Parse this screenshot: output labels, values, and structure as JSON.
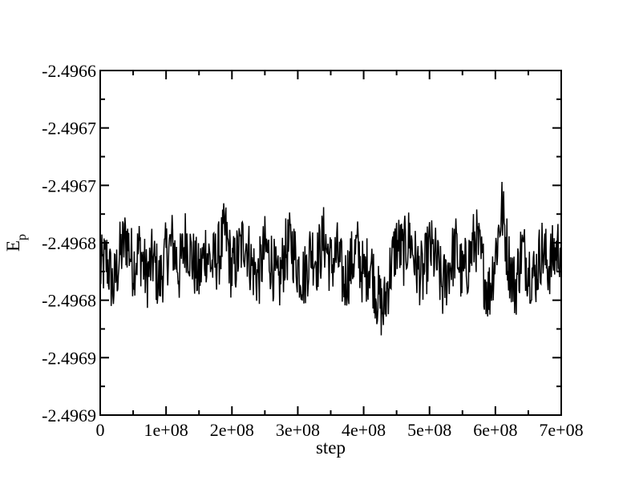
{
  "chart_data": {
    "type": "line",
    "title": "",
    "xlabel": "step",
    "ylabel": "E",
    "ylabel_subscript": "p",
    "xlim": [
      0,
      700000000
    ],
    "ylim": [
      -2.4969,
      -2.4966
    ],
    "grid": false,
    "legend": "none",
    "line_color": "#000000",
    "x_ticks": [
      {
        "value": 0,
        "label": "0"
      },
      {
        "value": 100000000,
        "label": "1e+08"
      },
      {
        "value": 200000000,
        "label": "2e+08"
      },
      {
        "value": 300000000,
        "label": "3e+08"
      },
      {
        "value": 400000000,
        "label": "4e+08"
      },
      {
        "value": 500000000,
        "label": "5e+08"
      },
      {
        "value": 600000000,
        "label": "6e+08"
      },
      {
        "value": 700000000,
        "label": "7e+08"
      }
    ],
    "y_ticks": [
      {
        "value": -2.4969,
        "label": "-2.4969"
      },
      {
        "value": -2.49685,
        "label": "-2.4969"
      },
      {
        "value": -2.4968,
        "label": "-2.4968"
      },
      {
        "value": -2.49675,
        "label": "-2.4968"
      },
      {
        "value": -2.4967,
        "label": "-2.4967"
      },
      {
        "value": -2.49665,
        "label": "-2.4967"
      },
      {
        "value": -2.4966,
        "label": "-2.4966"
      }
    ],
    "series": [
      {
        "x": [
          0,
          10000000,
          20000000,
          30000000,
          40000000,
          50000000,
          60000000,
          70000000,
          80000000,
          90000000,
          100000000,
          110000000,
          120000000,
          130000000,
          140000000,
          150000000,
          160000000,
          170000000,
          180000000,
          190000000,
          200000000,
          210000000,
          220000000,
          230000000,
          240000000,
          250000000,
          260000000,
          270000000,
          280000000,
          290000000,
          300000000,
          310000000,
          320000000,
          330000000,
          340000000,
          350000000,
          360000000,
          370000000,
          380000000,
          390000000,
          400000000,
          410000000,
          420000000,
          430000000,
          440000000,
          450000000,
          460000000,
          470000000,
          480000000,
          490000000,
          500000000,
          510000000,
          520000000,
          530000000,
          540000000,
          550000000,
          560000000,
          570000000,
          580000000,
          590000000,
          600000000,
          610000000,
          620000000,
          630000000,
          640000000,
          650000000,
          660000000,
          670000000,
          680000000,
          690000000,
          700000000
        ],
        "y": [
          -2.496775,
          -2.496765,
          -2.49679,
          -2.49676,
          -2.496745,
          -2.49677,
          -2.496755,
          -2.49678,
          -2.496765,
          -2.496785,
          -2.49676,
          -2.49675,
          -2.496775,
          -2.496745,
          -2.496765,
          -2.49678,
          -2.496755,
          -2.49677,
          -2.49676,
          -2.49674,
          -2.496775,
          -2.49676,
          -2.496745,
          -2.49677,
          -2.49678,
          -2.496755,
          -2.496765,
          -2.49679,
          -2.49676,
          -2.49675,
          -2.49677,
          -2.49678,
          -2.496755,
          -2.496765,
          -2.496745,
          -2.49677,
          -2.49676,
          -2.496785,
          -2.49677,
          -2.496755,
          -2.49678,
          -2.496765,
          -2.496795,
          -2.49681,
          -2.496775,
          -2.49675,
          -2.49676,
          -2.496745,
          -2.49677,
          -2.49678,
          -2.496755,
          -2.496765,
          -2.49679,
          -2.49677,
          -2.496755,
          -2.49678,
          -2.496765,
          -2.496745,
          -2.49677,
          -2.496795,
          -2.49676,
          -2.49672,
          -2.496765,
          -2.49679,
          -2.496755,
          -2.49677,
          -2.49678,
          -2.496755,
          -2.49677,
          -2.49676,
          -2.49675
        ]
      }
    ]
  }
}
